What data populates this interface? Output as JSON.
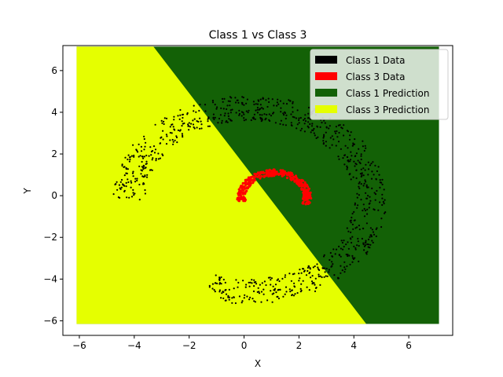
{
  "chart_data": {
    "type": "scatter",
    "title": "Class 1 vs Class 3",
    "xlabel": "X",
    "ylabel": "Y",
    "xlim": [
      -6.6,
      7.6
    ],
    "ylim": [
      -6.7,
      7.2
    ],
    "xticks": [
      -6,
      -4,
      -2,
      0,
      2,
      4,
      6
    ],
    "yticks": [
      -6,
      -4,
      -2,
      0,
      2,
      4,
      6
    ],
    "grid": false,
    "legend_position": "top-right",
    "prediction_region": {
      "x_range": [
        -6.1,
        7.1
      ],
      "y_range": [
        -6.15,
        7.15
      ],
      "boundary_line": [
        [
          -3.3,
          7.15
        ],
        [
          4.45,
          -6.15
        ]
      ]
    },
    "series": [
      {
        "name": "Class 1 Data",
        "color": "#000000",
        "shape": "ring-spiral",
        "ring_center": [
          0.2,
          -0.2
        ],
        "ring_radius_range": [
          3.8,
          5.0
        ],
        "ring_angle_range_deg": [
          -110,
          180
        ]
      },
      {
        "name": "Class 3 Data",
        "color": "#ff0000",
        "shape": "arc",
        "arc_center": [
          1.1,
          -0.1
        ],
        "arc_radius": 1.2,
        "arc_angle_range_deg": [
          -15,
          190
        ]
      },
      {
        "name": "Class 1 Prediction",
        "color": "#136106"
      },
      {
        "name": "Class 3 Prediction",
        "color": "#e5ff00"
      }
    ]
  }
}
